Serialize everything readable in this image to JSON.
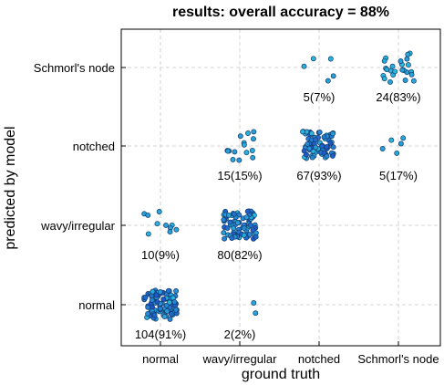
{
  "chart_data": {
    "type": "scatter",
    "title": "results: overall accuracy = 88%",
    "xlabel": "ground truth",
    "ylabel": "predicted by model",
    "categories": [
      "normal",
      "wavy/irregular",
      "notched",
      "Schmorl's node"
    ],
    "grid": true,
    "cells": [
      {
        "truth": "normal",
        "predicted": "normal",
        "count": 104,
        "label": "104(91%)"
      },
      {
        "truth": "normal",
        "predicted": "wavy/irregular",
        "count": 10,
        "label": "10(9%)"
      },
      {
        "truth": "wavy/irregular",
        "predicted": "normal",
        "count": 2,
        "label": "2(2%)"
      },
      {
        "truth": "wavy/irregular",
        "predicted": "wavy/irregular",
        "count": 80,
        "label": "80(82%)"
      },
      {
        "truth": "wavy/irregular",
        "predicted": "notched",
        "count": 15,
        "label": "15(15%)"
      },
      {
        "truth": "notched",
        "predicted": "notched",
        "count": 67,
        "label": "67(93%)"
      },
      {
        "truth": "notched",
        "predicted": "Schmorl's node",
        "count": 5,
        "label": "5(7%)"
      },
      {
        "truth": "Schmorl's node",
        "predicted": "notched",
        "count": 5,
        "label": "5(17%)"
      },
      {
        "truth": "Schmorl's node",
        "predicted": "Schmorl's node",
        "count": 24,
        "label": "24(83%)"
      }
    ],
    "colors": {
      "marker_light": "#2bb9dc",
      "marker_dark": "#1f4fc9",
      "marker_edge": "#103a6b"
    }
  }
}
